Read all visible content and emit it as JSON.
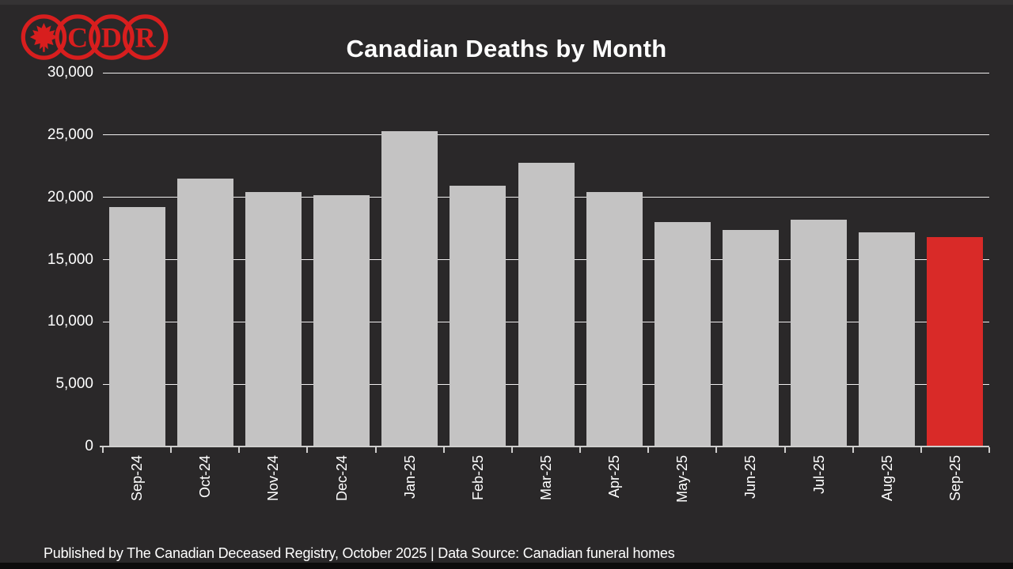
{
  "title": "Canadian Deaths by Month",
  "footer": "Published by The Canadian Deceased Registry, October 2025 | Data Source: Canadian funeral homes",
  "logo": {
    "letters": [
      "C",
      "D",
      "R"
    ],
    "color": "#d81e1e"
  },
  "colors": {
    "background": "#2a2829",
    "bar": "#c4c3c3",
    "highlight": "#d92a28",
    "text": "#ffffff",
    "logo_red": "#d81e1e",
    "bottom_strip": "#0d0c0c"
  },
  "chart_data": {
    "type": "bar",
    "title": "Canadian Deaths by Month",
    "categories": [
      "Sep-24",
      "Oct-24",
      "Nov-24",
      "Dec-24",
      "Jan-25",
      "Feb-25",
      "Mar-25",
      "Apr-25",
      "May-25",
      "Jun-25",
      "Jul-25",
      "Aug-25",
      "Sep-25"
    ],
    "values": [
      19200,
      21500,
      20400,
      20200,
      25300,
      20900,
      22800,
      20400,
      18000,
      17400,
      18200,
      17200,
      16800
    ],
    "highlight_index": 12,
    "bar_color": "#c4c3c3",
    "highlight_color": "#d92a28",
    "xlabel": "",
    "ylabel": "",
    "ylim": [
      0,
      30000
    ],
    "yticks": [
      0,
      5000,
      10000,
      15000,
      20000,
      25000,
      30000
    ],
    "ytick_labels": [
      "0",
      "5,000",
      "10,000",
      "15,000",
      "20,000",
      "25,000",
      "30,000"
    ],
    "grid": true,
    "legend": false,
    "x_tick_rotation": 90
  }
}
